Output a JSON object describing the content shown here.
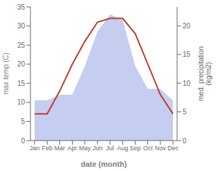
{
  "chart_data": {
    "type": "combo",
    "categories": [
      "Jan",
      "Feb",
      "Mar",
      "Apr",
      "May",
      "Jun",
      "Jul",
      "Aug",
      "Sep",
      "Oct",
      "Nov",
      "Dec"
    ],
    "xlabel": "date (month)",
    "ylabel": "max temp (C)",
    "y2label": "med. precipitation\n(kg/m2)",
    "series": [
      {
        "type": "area",
        "axis": "y2",
        "color": "#c5cdf0",
        "values": [
          7,
          7,
          8,
          8,
          13,
          19,
          22,
          21,
          13,
          9,
          9,
          7
        ]
      },
      {
        "type": "line",
        "color": "#c0392b",
        "values": [
          7,
          7,
          13,
          20,
          26,
          31,
          32,
          32,
          28,
          20,
          12,
          7
        ]
      }
    ],
    "ylim": [
      0,
      35
    ],
    "yticks": [
      0,
      5,
      10,
      15,
      20,
      25,
      30,
      35
    ],
    "y2lim": [
      0,
      23.3
    ],
    "y2ticks": [
      0,
      5,
      10,
      15,
      20
    ],
    "grid": false
  }
}
